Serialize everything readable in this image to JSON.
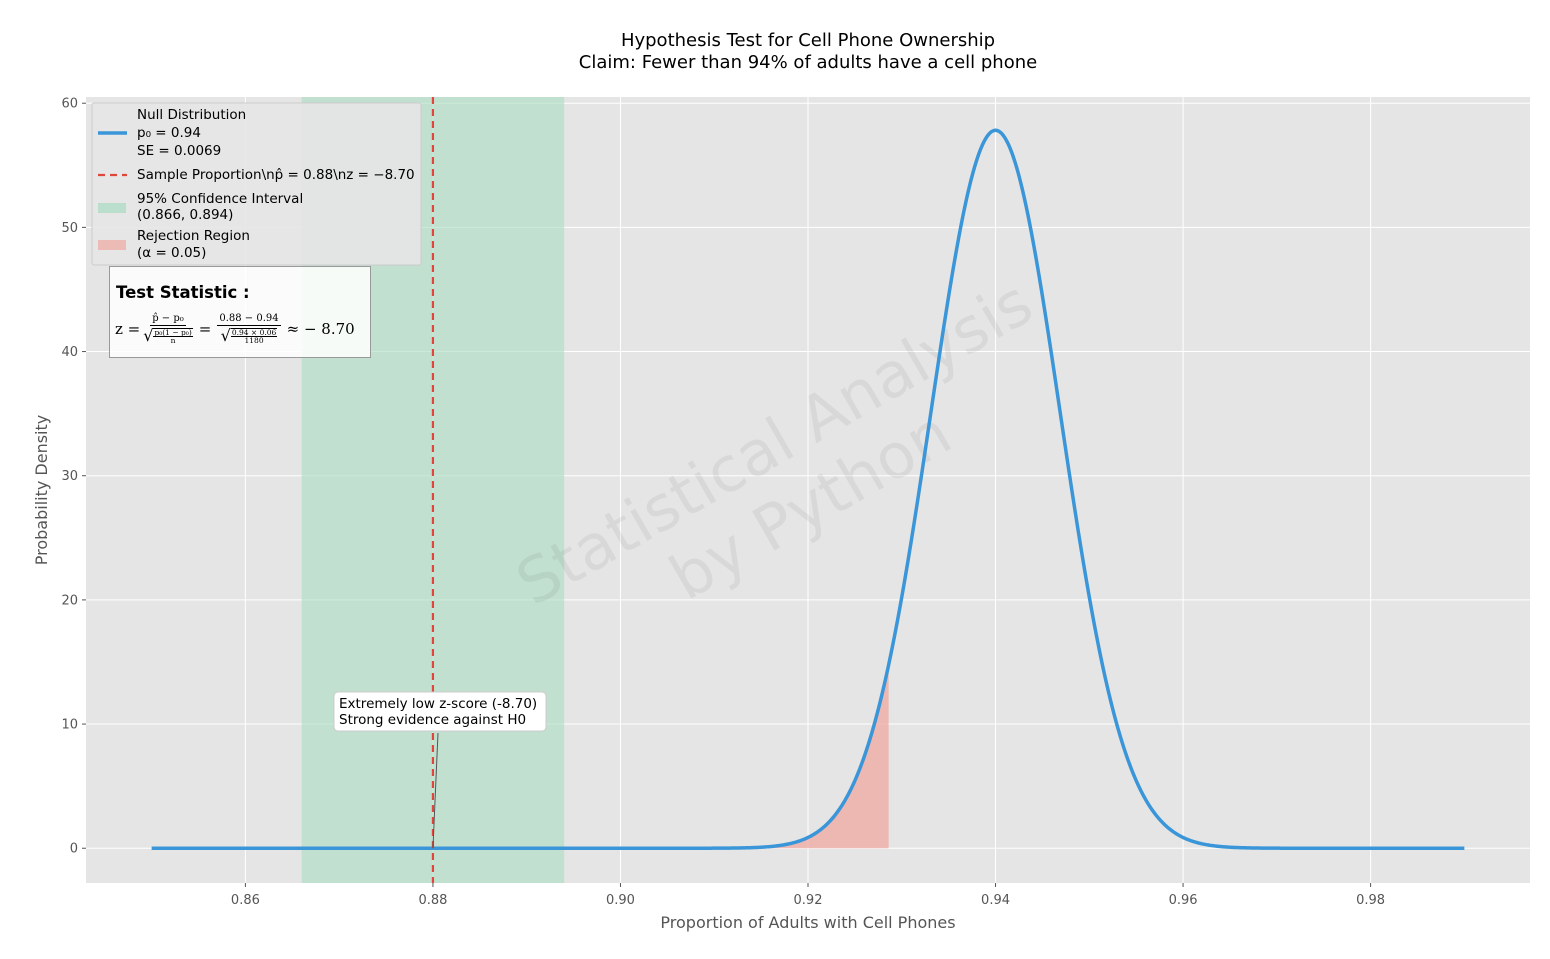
{
  "chart_data": {
    "type": "line",
    "title": "Hypothesis Test for Cell Phone Ownership",
    "subtitle": "Claim: Fewer than 94% of adults have a cell phone",
    "xlabel": "Proportion of Adults with Cell Phones",
    "ylabel": "Probability Density",
    "xlim": [
      0.843,
      0.997
    ],
    "ylim": [
      -2.8,
      60.5
    ],
    "xticks": [
      0.86,
      0.88,
      0.9,
      0.92,
      0.94,
      0.96,
      0.98
    ],
    "xtick_labels": [
      "0.86",
      "0.88",
      "0.90",
      "0.92",
      "0.94",
      "0.96",
      "0.98"
    ],
    "yticks": [
      0,
      10,
      20,
      30,
      40,
      50,
      60
    ],
    "ytick_labels": [
      "0",
      "10",
      "20",
      "30",
      "40",
      "50",
      "60"
    ],
    "grid": true,
    "legend_position": "top-left",
    "null_distribution": {
      "p0": 0.94,
      "se": 0.0069,
      "x_range": [
        0.85,
        0.99
      ],
      "color": "#3a96d8"
    },
    "sample_proportion": {
      "p_hat": 0.88,
      "z": -8.7,
      "color": "#e0463c"
    },
    "confidence_interval": {
      "lower": 0.866,
      "upper": 0.894,
      "color": "#a8dcc0"
    },
    "rejection_region": {
      "alpha": 0.05,
      "upper_bound": 0.9286,
      "color": "#f0a8a0"
    },
    "legend": [
      {
        "lines": [
          "Null Distribution",
          "p₀ = 0.94",
          "SE = 0.0069"
        ]
      },
      {
        "lines": [
          "Sample Proportion\\np̂ = 0.88\\nz = −8.70"
        ]
      },
      {
        "lines": [
          "95% Confidence Interval",
          "(0.866, 0.894)"
        ]
      },
      {
        "lines": [
          "Rejection Region",
          "(α = 0.05)"
        ]
      }
    ],
    "annotation": {
      "lines": [
        "Extremely low z-score (-8.70)",
        "Strong evidence against H0"
      ],
      "target_x": 0.88,
      "target_y": 0
    },
    "watermark": [
      "Statistical Analysis",
      "by Python"
    ],
    "formula_box": {
      "heading": "Test Statistic :",
      "z": "z =",
      "num": "p̂ − p₀",
      "den_num": "p₀(1 − p₀)",
      "den_den": "n",
      "eq": "=",
      "num2": "0.88 − 0.94",
      "den2_num": "0.94 × 0.06",
      "den2_den": "1180",
      "approx": "≈ − 8.70"
    }
  }
}
